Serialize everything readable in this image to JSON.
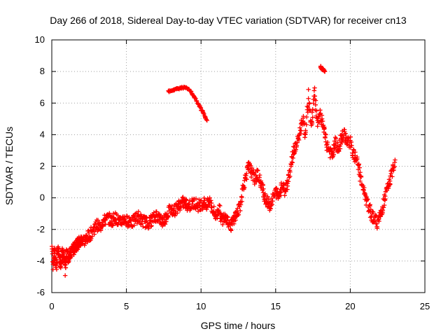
{
  "chart_data": {
    "type": "scatter",
    "title": "Day 266 of 2018, Sidereal Day-to-day VTEC variation (SDTVAR) for receiver cn13",
    "xlabel": "GPS time / hours",
    "ylabel": "SDTVAR / TECUs",
    "xlim": [
      0,
      25
    ],
    "ylim": [
      -6,
      10
    ],
    "xticks": [
      0,
      5,
      10,
      15,
      20,
      25
    ],
    "yticks": [
      -6,
      -4,
      -2,
      0,
      2,
      4,
      6,
      8,
      10
    ],
    "xtick_labels": [
      "0",
      "5",
      "10",
      "15",
      "20",
      "25"
    ],
    "ytick_labels": [
      "-6",
      "-4",
      "-2",
      "0",
      "2",
      "4",
      "6",
      "8",
      "10"
    ],
    "grid": true,
    "marker": "+",
    "color": "#ff0000",
    "series": [
      {
        "name": "cn13",
        "trace": [
          [
            0.0,
            -3.0
          ],
          [
            0.1,
            -4.2
          ],
          [
            0.2,
            -3.4
          ],
          [
            0.3,
            -4.4
          ],
          [
            0.4,
            -3.2
          ],
          [
            0.5,
            -3.8
          ],
          [
            0.6,
            -4.1
          ],
          [
            0.7,
            -3.5
          ],
          [
            0.8,
            -3.7
          ],
          [
            0.9,
            -4.6
          ],
          [
            1.0,
            -3.3
          ],
          [
            1.1,
            -3.9
          ],
          [
            1.2,
            -3.4
          ],
          [
            1.3,
            -3.6
          ],
          [
            1.4,
            -3.1
          ],
          [
            1.5,
            -3.3
          ],
          [
            1.6,
            -2.9
          ],
          [
            1.7,
            -3.0
          ],
          [
            1.8,
            -2.8
          ],
          [
            1.9,
            -2.9
          ],
          [
            2.0,
            -2.6
          ],
          [
            2.2,
            -2.7
          ],
          [
            2.4,
            -2.5
          ],
          [
            2.6,
            -2.3
          ],
          [
            2.8,
            -2.0
          ],
          [
            3.0,
            -1.7
          ],
          [
            3.2,
            -1.9
          ],
          [
            3.4,
            -1.5
          ],
          [
            3.6,
            -1.4
          ],
          [
            3.8,
            -1.3
          ],
          [
            4.0,
            -1.5
          ],
          [
            4.2,
            -1.2
          ],
          [
            4.4,
            -1.4
          ],
          [
            4.6,
            -1.6
          ],
          [
            4.8,
            -1.3
          ],
          [
            5.0,
            -1.5
          ],
          [
            5.2,
            -1.4
          ],
          [
            5.4,
            -1.6
          ],
          [
            5.6,
            -1.3
          ],
          [
            5.8,
            -1.2
          ],
          [
            6.0,
            -1.4
          ],
          [
            6.2,
            -1.5
          ],
          [
            6.4,
            -1.6
          ],
          [
            6.6,
            -1.5
          ],
          [
            6.8,
            -1.3
          ],
          [
            7.0,
            -1.1
          ],
          [
            7.2,
            -1.3
          ],
          [
            7.4,
            -1.5
          ],
          [
            7.6,
            -1.3
          ],
          [
            7.8,
            -0.9
          ],
          [
            8.0,
            -0.7
          ],
          [
            8.2,
            -0.8
          ],
          [
            8.4,
            -0.6
          ],
          [
            8.6,
            -0.4
          ],
          [
            8.8,
            -0.3
          ],
          [
            9.0,
            -0.4
          ],
          [
            9.2,
            -0.5
          ],
          [
            9.4,
            -0.4
          ],
          [
            9.6,
            -0.3
          ],
          [
            9.8,
            -0.5
          ],
          [
            10.0,
            -0.4
          ],
          [
            10.2,
            -0.3
          ],
          [
            10.4,
            -0.5
          ],
          [
            10.6,
            -0.2
          ],
          [
            10.8,
            -0.8
          ],
          [
            11.0,
            -1.2
          ],
          [
            11.2,
            -0.6
          ],
          [
            11.4,
            -1.5
          ],
          [
            11.6,
            -1.0
          ],
          [
            11.8,
            -1.4
          ],
          [
            12.0,
            -1.8
          ],
          [
            12.2,
            -1.3
          ],
          [
            12.4,
            -1.0
          ],
          [
            12.6,
            -0.6
          ],
          [
            12.8,
            0.6
          ],
          [
            13.0,
            1.4
          ],
          [
            13.2,
            2.0
          ],
          [
            13.4,
            1.6
          ],
          [
            13.6,
            1.2
          ],
          [
            13.8,
            1.5
          ],
          [
            14.0,
            0.9
          ],
          [
            14.2,
            0.3
          ],
          [
            14.4,
            -0.2
          ],
          [
            14.6,
            -0.5
          ],
          [
            14.8,
            -0.1
          ],
          [
            15.0,
            0.4
          ],
          [
            15.2,
            0.1
          ],
          [
            15.4,
            0.8
          ],
          [
            15.6,
            0.5
          ],
          [
            15.8,
            1.0
          ],
          [
            16.0,
            2.0
          ],
          [
            16.2,
            3.0
          ],
          [
            16.4,
            3.3
          ],
          [
            16.6,
            4.1
          ],
          [
            16.8,
            5.0
          ],
          [
            17.0,
            4.0
          ],
          [
            17.2,
            6.5
          ],
          [
            17.4,
            4.5
          ],
          [
            17.6,
            6.8
          ],
          [
            17.8,
            4.6
          ],
          [
            18.0,
            5.2
          ],
          [
            18.2,
            4.5
          ],
          [
            18.4,
            3.4
          ],
          [
            18.6,
            3.0
          ],
          [
            18.8,
            2.6
          ],
          [
            19.0,
            3.5
          ],
          [
            19.2,
            3.0
          ],
          [
            19.4,
            3.8
          ],
          [
            19.6,
            4.0
          ],
          [
            19.8,
            3.6
          ],
          [
            20.0,
            3.5
          ],
          [
            20.2,
            2.8
          ],
          [
            20.4,
            2.4
          ],
          [
            20.6,
            1.8
          ],
          [
            20.8,
            0.8
          ],
          [
            21.0,
            0.0
          ],
          [
            21.2,
            -0.5
          ],
          [
            21.4,
            -1.0
          ],
          [
            21.6,
            -1.3
          ],
          [
            21.8,
            -1.6
          ],
          [
            22.0,
            -1.2
          ],
          [
            22.2,
            -0.5
          ],
          [
            22.4,
            0.3
          ],
          [
            22.6,
            0.9
          ],
          [
            22.8,
            1.6
          ],
          [
            23.0,
            2.4
          ]
        ],
        "isolated_segment": [
          [
            7.8,
            6.75
          ],
          [
            8.0,
            6.8
          ],
          [
            8.2,
            6.85
          ],
          [
            8.4,
            6.9
          ],
          [
            8.6,
            6.95
          ],
          [
            8.8,
            6.98
          ],
          [
            9.0,
            6.95
          ],
          [
            9.2,
            6.85
          ],
          [
            9.4,
            6.6
          ],
          [
            9.6,
            6.3
          ],
          [
            9.8,
            5.95
          ],
          [
            10.0,
            5.6
          ],
          [
            10.2,
            5.25
          ],
          [
            10.4,
            4.9
          ]
        ],
        "peak_segment": [
          [
            18.0,
            8.3
          ],
          [
            18.1,
            8.2
          ],
          [
            18.2,
            8.1
          ],
          [
            18.3,
            8.0
          ]
        ]
      }
    ]
  }
}
